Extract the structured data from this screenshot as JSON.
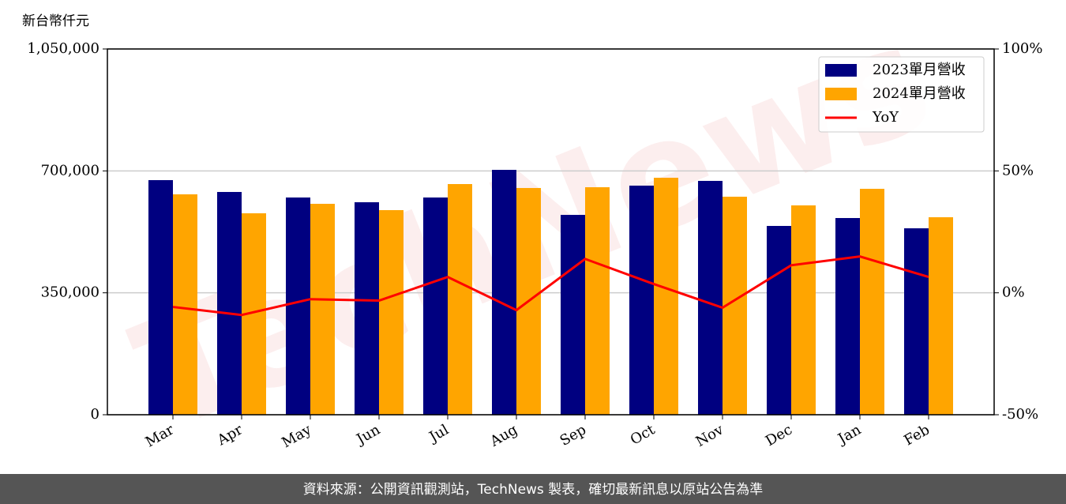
{
  "chart_data": {
    "type": "bar_line",
    "y_label": "新台幣仟元",
    "watermark": "TechNews",
    "footer": "資料來源：公開資訊觀測站，TechNews 製表，確切最新訊息以原站公告為準",
    "categories": [
      "Mar",
      "Apr",
      "May",
      "Jun",
      "Jul",
      "Aug",
      "Sep",
      "Oct",
      "Nov",
      "Dec",
      "Jan",
      "Feb"
    ],
    "series": [
      {
        "name": "2023單月營收",
        "color": "#000080",
        "kind": "bar",
        "values": [
          673500,
          639500,
          623600,
          610000,
          623600,
          703000,
          573700,
          657700,
          671300,
          542000,
          564700,
          535200
        ]
      },
      {
        "name": "2024單月營收",
        "color": "#ffa500",
        "kind": "bar",
        "values": [
          632700,
          578300,
          605500,
          587400,
          662200,
          650900,
          653100,
          680300,
          625900,
          601000,
          648600,
          567000
        ]
      },
      {
        "name": "YoY",
        "color": "#ff0000",
        "kind": "line",
        "axis": "y2",
        "values": [
          -5.8,
          -9.1,
          -2.6,
          -3.2,
          6.5,
          -7.1,
          13.9,
          3.6,
          -6.1,
          11.3,
          14.9,
          6.5
        ]
      }
    ],
    "ylim": [
      0,
      1050000
    ],
    "yticks": [
      0,
      {
        "value": 350000,
        "label": "350,000"
      },
      {
        "value": 700000,
        "label": "700,000"
      },
      {
        "value": 1050000,
        "label": "1,050,000"
      }
    ],
    "y2lim": [
      -50,
      100
    ],
    "y2ticks": [
      {
        "value": -50,
        "label": "-50%"
      },
      {
        "value": 0,
        "label": "0%"
      },
      {
        "value": 50,
        "label": "50%"
      },
      {
        "value": 100,
        "label": "100%"
      }
    ],
    "grid": true,
    "legend": "upper right"
  }
}
